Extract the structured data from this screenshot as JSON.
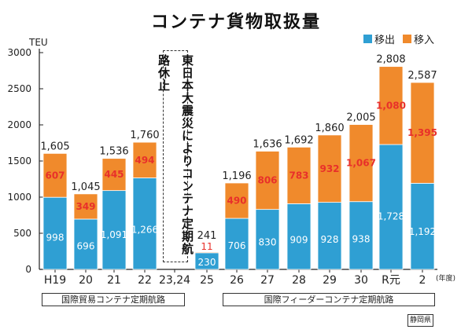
{
  "title": "コンテナ貨物取扱量",
  "legend": [
    {
      "label": "移出",
      "color": "#2f9fd3"
    },
    {
      "label": "移入",
      "color": "#f08a2c"
    }
  ],
  "unit": "TEU",
  "fiscal_year_label": "(年度)",
  "suspension_note": "東日本大震災によりコンテナ定期航路休止",
  "routes": {
    "international_trade": "国際貿易コンテナ定期航路",
    "international_feeder": "国際フィーダーコンテナ定期航路"
  },
  "source": "静岡県",
  "chart_data": {
    "type": "bar",
    "stacked": true,
    "categories": [
      "H19",
      "20",
      "21",
      "22",
      "23,24",
      "25",
      "26",
      "27",
      "28",
      "29",
      "30",
      "R元",
      "2"
    ],
    "series": [
      {
        "name": "移出",
        "values": [
          998,
          696,
          1091,
          1266,
          null,
          230,
          706,
          830,
          909,
          928,
          938,
          1728,
          1192
        ]
      },
      {
        "name": "移入",
        "values": [
          607,
          349,
          445,
          494,
          null,
          11,
          490,
          806,
          783,
          932,
          1067,
          1080,
          1395
        ]
      }
    ],
    "totals": [
      1605,
      1045,
      1536,
      1760,
      null,
      241,
      1196,
      1636,
      1692,
      1860,
      2005,
      2808,
      2587
    ],
    "total_labels": [
      "1,605",
      "1,045",
      "1,536",
      "1,760",
      "",
      "241",
      "1,196",
      "1,636",
      "1,692",
      "1,860",
      "2,005",
      "2,808",
      "2,587"
    ],
    "export_labels": [
      "998",
      "696",
      "1,091",
      "1,266",
      "",
      "230",
      "706",
      "830",
      "909",
      "928",
      "938",
      "1,728",
      "1,192"
    ],
    "import_labels": [
      "607",
      "349",
      "445",
      "494",
      "",
      "11",
      "490",
      "806",
      "783",
      "932",
      "1,067",
      "1,080",
      "1,395"
    ],
    "y_ticks": [
      "0",
      "500",
      "1000",
      "1500",
      "2000",
      "2500",
      "3000"
    ],
    "ylim": [
      0,
      3000
    ],
    "ylabel": "TEU",
    "xlabel": "(年度)",
    "grid": false,
    "legend_position": "top-right"
  }
}
